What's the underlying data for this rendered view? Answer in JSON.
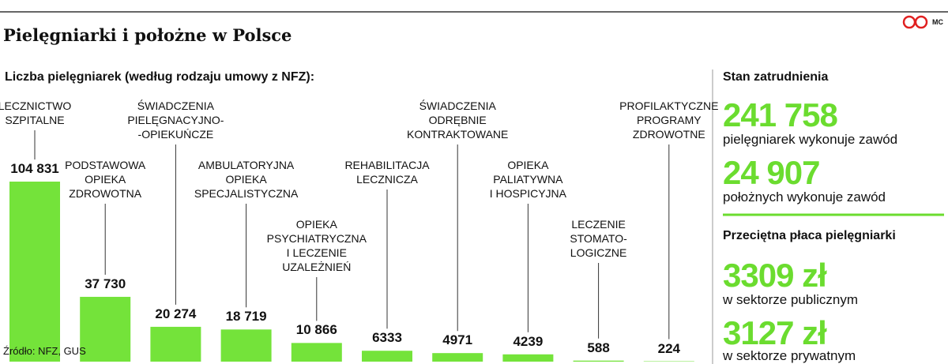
{
  "title": "Pielęgniarki i położne w Polsce",
  "logo_text": "MC",
  "source": "Źródło: NFZ, GUS",
  "chart_data": {
    "type": "bar",
    "title": "Liczba pielęgniarek (według rodzaju umowy z NFZ):",
    "categories": [
      "LECZNICTWO\nSZPITALNE",
      "PODSTAWOWA\nOPIEKA\nZDROWOTNA",
      "ŚWIADCZENIA\nPIELĘGNACYJNO-\n-OPIEKUŃCZE",
      "AMBULATORYJNA\nOPIEKA\nSPECJALISTYCZNA",
      "OPIEKA\nPSYCHIATRYCZNA\nI LECZENIE\nUZALEŻNIEŃ",
      "REHABILITACJA\nLECZNICZA",
      "ŚWIADCZENIA\nODRĘBNIE\nKONTRAKTOWANE",
      "OPIEKA\nPALIATYWNA\nI HOSPICYJNA",
      "LECZENIE\nSTOMATO-\nLOGICZNE",
      "PROFILAKTYCZNE\nPROGRAMY\nZDROWOTNE"
    ],
    "values": [
      104831,
      37730,
      20274,
      18719,
      10866,
      6333,
      4971,
      4239,
      588,
      224
    ],
    "value_labels": [
      "104 831",
      "37 730",
      "20 274",
      "18 719",
      "10 866",
      "6333",
      "4971",
      "4239",
      "588",
      "224"
    ],
    "color": "#74e33a"
  },
  "stats": {
    "employment_heading": "Stan zatrudnienia",
    "nurses_number": "241 758",
    "nurses_text": "pielęgniarek wykonuje zawód",
    "midwives_number": "24 907",
    "midwives_text": "położnych wykonuje zawód",
    "salary_heading": "Przeciętna płaca pielęgniarki",
    "public_salary": "3309 zł",
    "public_text": "w sektorze publicznym",
    "private_salary": "3127 zł",
    "private_text": "w sektorze prywatnym"
  }
}
